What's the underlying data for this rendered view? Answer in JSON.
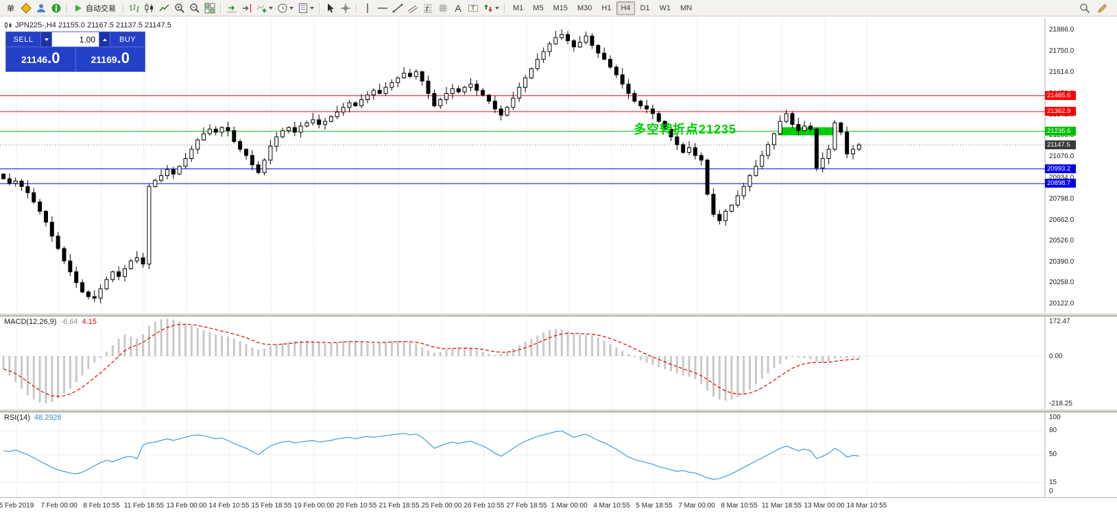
{
  "toolbar": {
    "items": [
      {
        "name": "new-order-button",
        "label": "单"
      },
      {
        "name": "metaeditor-button",
        "icon": "diamond"
      },
      {
        "name": "community-button",
        "icon": "person"
      },
      {
        "name": "news-button",
        "icon": "info"
      },
      {
        "sep": true
      },
      {
        "name": "autotrading-button",
        "icon": "play",
        "label": "自动交易"
      },
      {
        "sep": true
      },
      {
        "name": "bar-chart-button",
        "icon": "bars"
      },
      {
        "name": "candlestick-chart-button",
        "icon": "candles"
      },
      {
        "name": "line-chart-button",
        "icon": "line"
      },
      {
        "name": "zoom-in-button",
        "icon": "zoomin"
      },
      {
        "name": "zoom-out-button",
        "icon": "zoomout"
      },
      {
        "name": "tile-windows-button",
        "icon": "tile"
      },
      {
        "sep": true
      },
      {
        "name": "auto-scroll-button",
        "icon": "scroll"
      },
      {
        "name": "chart-shift-button",
        "icon": "shift"
      },
      {
        "name": "indicators-button",
        "icon": "indicators",
        "caret": true
      },
      {
        "name": "periods-button",
        "icon": "clock",
        "caret": true
      },
      {
        "name": "templates-button",
        "icon": "template",
        "caret": true
      },
      {
        "sep": true
      },
      {
        "name": "cursor-button",
        "icon": "cursor"
      },
      {
        "name": "crosshair-button",
        "icon": "cross"
      },
      {
        "sep": true
      },
      {
        "name": "vertical-line-button",
        "icon": "vline"
      },
      {
        "name": "horizontal-line-button",
        "icon": "hline"
      },
      {
        "name": "trendline-button",
        "icon": "trend"
      },
      {
        "name": "channel-button",
        "icon": "channel"
      },
      {
        "name": "fibonacci-button",
        "icon": "fibo"
      },
      {
        "name": "grid-tool-button",
        "icon": "gridicon"
      },
      {
        "name": "text-button",
        "icon": "textA"
      },
      {
        "name": "text-label-button",
        "icon": "labelT"
      },
      {
        "name": "arrows-button",
        "icon": "arrows",
        "caret": true
      },
      {
        "sep": true
      },
      {
        "name": "tf-m1-button",
        "label": "M1",
        "tf": true
      },
      {
        "name": "tf-m5-button",
        "label": "M5",
        "tf": true
      },
      {
        "name": "tf-m15-button",
        "label": "M15",
        "tf": true
      },
      {
        "name": "tf-m30-button",
        "label": "M30",
        "tf": true
      },
      {
        "name": "tf-h1-button",
        "label": "H1",
        "tf": true
      },
      {
        "name": "tf-h4-button",
        "label": "H4",
        "tf": true,
        "active": true
      },
      {
        "name": "tf-d1-button",
        "label": "D1",
        "tf": true
      },
      {
        "name": "tf-w1-button",
        "label": "W1",
        "tf": true
      },
      {
        "name": "tf-mn-button",
        "label": "MN",
        "tf": true
      }
    ],
    "right_items": [
      {
        "name": "search-button",
        "icon": "search"
      },
      {
        "name": "quick-edit-button",
        "icon": "pencil"
      }
    ]
  },
  "chart": {
    "symbol_info": "JPN225-,H4 21155.0 21167.5 21137.5 21147.5"
  },
  "one_click": {
    "sell_label": "SELL",
    "buy_label": "BUY",
    "volume": "1.00",
    "sell_price": "21146",
    "sell_frac": ".0",
    "buy_price": "21169",
    "buy_frac": ".0"
  },
  "annotation": {
    "text": "多空转折点21235",
    "color": "#00CC00"
  },
  "levels": [
    {
      "price": 21465.6,
      "label": "21465.6",
      "color": "#FF0000",
      "style": "solid"
    },
    {
      "price": 21362.9,
      "label": "21362.9",
      "color": "#FF0000",
      "style": "solid"
    },
    {
      "price": 21235.6,
      "label": "21235.6",
      "color": "#00BE00",
      "style": "solid"
    },
    {
      "price": 21147.5,
      "label": "21147.5",
      "color": "#3B3B3B",
      "style": "dotted",
      "line_color": "#A8A8A8"
    },
    {
      "price": 20993.2,
      "label": "20993.2",
      "color": "#0000E8",
      "style": "solid"
    },
    {
      "price": 20898.7,
      "label": "20898.7",
      "color": "#0000E8",
      "style": "solid"
    }
  ],
  "price_axis": [
    "21886.0",
    "21750.0",
    "21614.0",
    "21478.0",
    "21342.0",
    "21206.0",
    "21070.0",
    "20934.0",
    "20798.0",
    "20662.0",
    "20526.0",
    "20390.0",
    "20258.0",
    "20122.0"
  ],
  "macd": {
    "label": "MACD(12,26,9)",
    "value_main": "-6.64",
    "value_signal": "4.15",
    "scale": [
      "172.47",
      "0.00",
      "-218.25"
    ]
  },
  "rsi": {
    "label": "RSI(14)",
    "value": "48.2926",
    "scale": [
      "100",
      "80",
      "50",
      "15",
      "0"
    ]
  },
  "time_axis": [
    "5 Feb 2019",
    "7 Feb 00:00",
    "8 Feb 10:55",
    "11 Feb 18:55",
    "13 Feb 00:00",
    "14 Feb 10:55",
    "15 Feb 18:55",
    "19 Feb 00:00",
    "20 Feb 10:55",
    "21 Feb 18:55",
    "25 Feb 00:00",
    "26 Feb 10:55",
    "27 Feb 18:55",
    "1 Mar 00:00",
    "4 Mar 10:55",
    "5 Mar 18:55",
    "7 Mar 00:00",
    "8 Mar 10:55",
    "11 Mar 18:55",
    "13 Mar 00:00",
    "14 Mar 10:55"
  ],
  "chart_data": {
    "type": "candlestick",
    "symbol": "JPN225-",
    "timeframe": "H4",
    "price_range": [
      20060,
      21950
    ],
    "closes": [
      20930,
      20900,
      20915,
      20880,
      20840,
      20780,
      20720,
      20650,
      20560,
      20480,
      20400,
      20330,
      20260,
      20200,
      20170,
      20160,
      20220,
      20280,
      20330,
      20300,
      20350,
      20400,
      20420,
      20380,
      20880,
      20920,
      20950,
      20990,
      20960,
      21010,
      21060,
      21120,
      21180,
      21220,
      21250,
      21230,
      21260,
      21240,
      21170,
      21120,
      21080,
      21020,
      20970,
      21050,
      21140,
      21200,
      21240,
      21260,
      21230,
      21270,
      21290,
      21310,
      21280,
      21300,
      21330,
      21360,
      21390,
      21420,
      21400,
      21440,
      21470,
      21500,
      21480,
      21520,
      21550,
      21580,
      21610,
      21590,
      21620,
      21560,
      21480,
      21400,
      21440,
      21480,
      21510,
      21490,
      21520,
      21540,
      21500,
      21470,
      21430,
      21380,
      21340,
      21390,
      21450,
      21520,
      21580,
      21640,
      21700,
      21750,
      21800,
      21840,
      21860,
      21820,
      21780,
      21810,
      21850,
      21790,
      21740,
      21700,
      21650,
      21600,
      21540,
      21480,
      21430,
      21400,
      21380,
      21350,
      21300,
      21250,
      21200,
      21150,
      21100,
      21130,
      21080,
      21050,
      20830,
      20700,
      20660,
      20720,
      20760,
      20820,
      20880,
      20950,
      21010,
      21080,
      21150,
      21220,
      21300,
      21350,
      21280,
      21240,
      21270,
      21250,
      21000,
      21060,
      21120,
      21290,
      21230,
      21090,
      21120,
      21147.5
    ],
    "macd_histogram": [
      -60,
      -90,
      -120,
      -150,
      -180,
      -200,
      -215,
      -218,
      -210,
      -195,
      -175,
      -150,
      -120,
      -90,
      -60,
      -30,
      -10,
      20,
      50,
      80,
      100,
      90,
      80,
      100,
      140,
      160,
      170,
      172,
      168,
      160,
      150,
      140,
      130,
      120,
      110,
      100,
      95,
      90,
      80,
      70,
      55,
      40,
      30,
      35,
      45,
      55,
      60,
      65,
      70,
      72,
      70,
      65,
      60,
      58,
      60,
      65,
      70,
      72,
      70,
      65,
      60,
      58,
      60,
      65,
      70,
      72,
      70,
      65,
      55,
      40,
      25,
      15,
      20,
      30,
      38,
      40,
      38,
      35,
      28,
      20,
      10,
      5,
      10,
      20,
      35,
      50,
      65,
      80,
      95,
      110,
      120,
      125,
      122,
      115,
      105,
      100,
      98,
      95,
      85,
      70,
      55,
      40,
      25,
      10,
      -5,
      -20,
      -30,
      -40,
      -50,
      -60,
      -70,
      -80,
      -90,
      -95,
      -105,
      -130,
      -160,
      -185,
      -200,
      -205,
      -200,
      -190,
      -175,
      -155,
      -130,
      -105,
      -80,
      -55,
      -35,
      -15,
      -5,
      -8,
      -10,
      -15,
      -25,
      -30,
      -25,
      -12,
      -8,
      -10,
      -8,
      -6.6
    ],
    "rsi": [
      55,
      54,
      56,
      53,
      50,
      46,
      42,
      38,
      34,
      31,
      29,
      27,
      26,
      28,
      32,
      36,
      40,
      43,
      41,
      44,
      47,
      48,
      45,
      62,
      65,
      66,
      68,
      70,
      68,
      70,
      72,
      74,
      75,
      74,
      72,
      70,
      71,
      68,
      64,
      61,
      58,
      54,
      50,
      56,
      61,
      64,
      66,
      67,
      65,
      66,
      67,
      68,
      66,
      67,
      68,
      70,
      71,
      72,
      70,
      72,
      73,
      72,
      73,
      74,
      75,
      76,
      77,
      75,
      76,
      72,
      65,
      58,
      61,
      64,
      66,
      64,
      66,
      67,
      64,
      61,
      57,
      52,
      48,
      53,
      58,
      63,
      67,
      70,
      73,
      75,
      77,
      79,
      80,
      76,
      72,
      74,
      76,
      72,
      68,
      65,
      61,
      57,
      52,
      47,
      44,
      42,
      40,
      38,
      35,
      33,
      31,
      29,
      30,
      28,
      27,
      24,
      21,
      19,
      20,
      23,
      26,
      30,
      34,
      38,
      42,
      46,
      50,
      54,
      58,
      61,
      58,
      55,
      57,
      55,
      45,
      48,
      52,
      58,
      54,
      47,
      49,
      48.3
    ],
    "green_zone": {
      "from_bar": 128,
      "to_bar": 137,
      "price_low": 21210,
      "price_high": 21262,
      "color": "#00CE00"
    }
  }
}
